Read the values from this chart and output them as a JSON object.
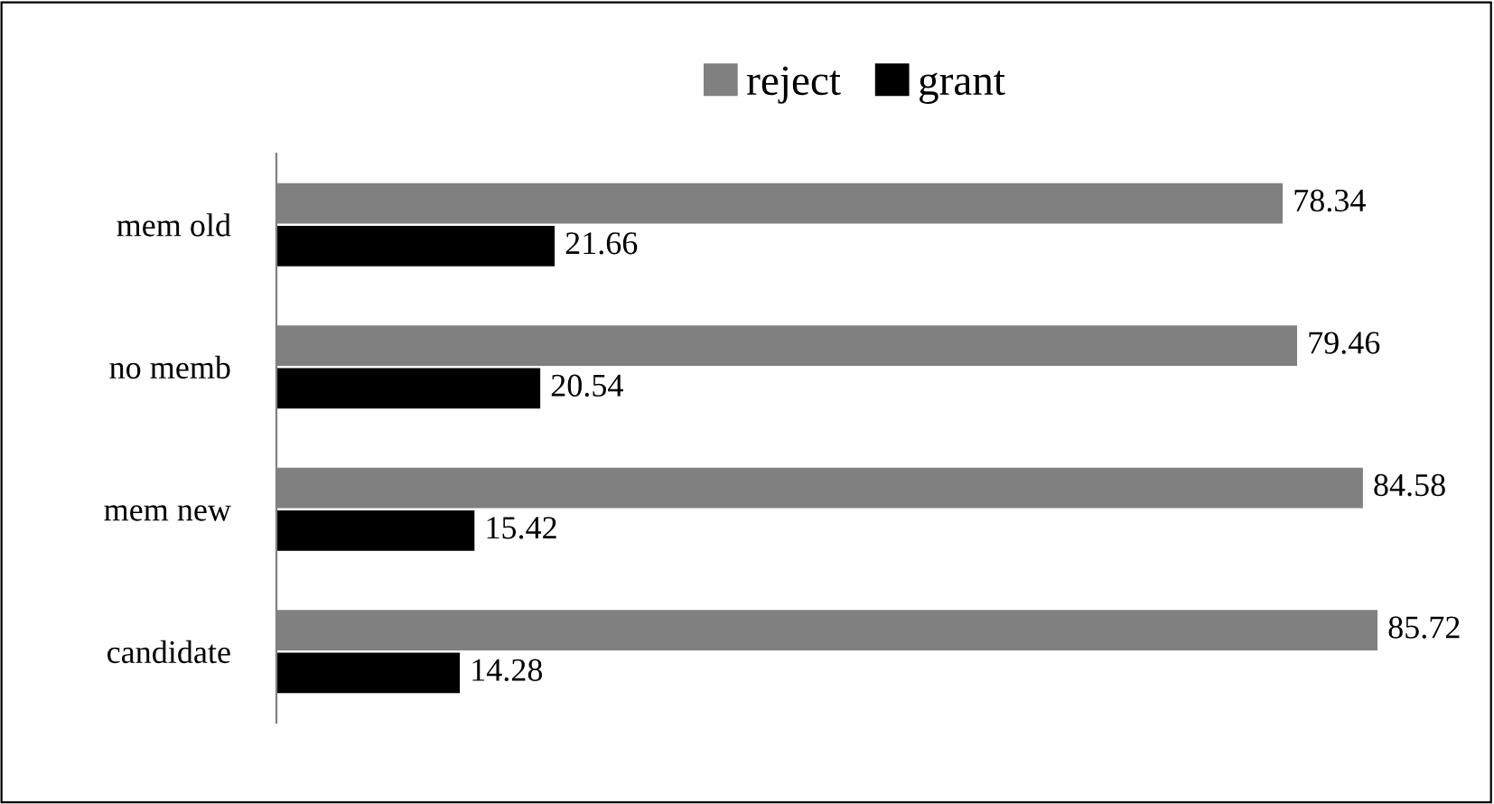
{
  "chart_data": {
    "type": "bar",
    "orientation": "horizontal",
    "categories": [
      "mem old",
      "no memb",
      "mem new",
      "candidate"
    ],
    "series": [
      {
        "name": "reject",
        "color": "#808080",
        "values": [
          78.34,
          79.46,
          84.58,
          85.72
        ]
      },
      {
        "name": "grant",
        "color": "#000000",
        "values": [
          21.66,
          20.54,
          15.42,
          14.28
        ]
      }
    ],
    "data_labels": true,
    "legend": "top",
    "grid": false,
    "tick_labels": "y"
  }
}
